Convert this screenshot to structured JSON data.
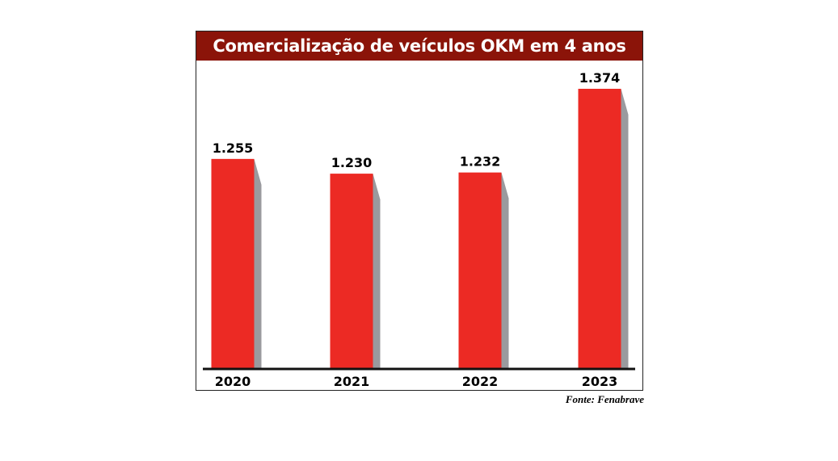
{
  "chart_data": {
    "type": "bar",
    "title": "Comercialização de veículos OKM em 4 anos",
    "categories": [
      "2020",
      "2021",
      "2022",
      "2023"
    ],
    "values": [
      1255,
      1230,
      1232,
      1374
    ],
    "value_labels": [
      "1.255",
      "1.230",
      "1.232",
      "1.374"
    ],
    "xlabel": "",
    "ylabel": "",
    "ylim": [
      900,
      1400
    ],
    "grid": false,
    "source": "Fonte: Fenabrave",
    "colors": {
      "bar": "#ec2a24",
      "shadow": "#9a9a9e",
      "title_bg": "#8b1409"
    }
  }
}
